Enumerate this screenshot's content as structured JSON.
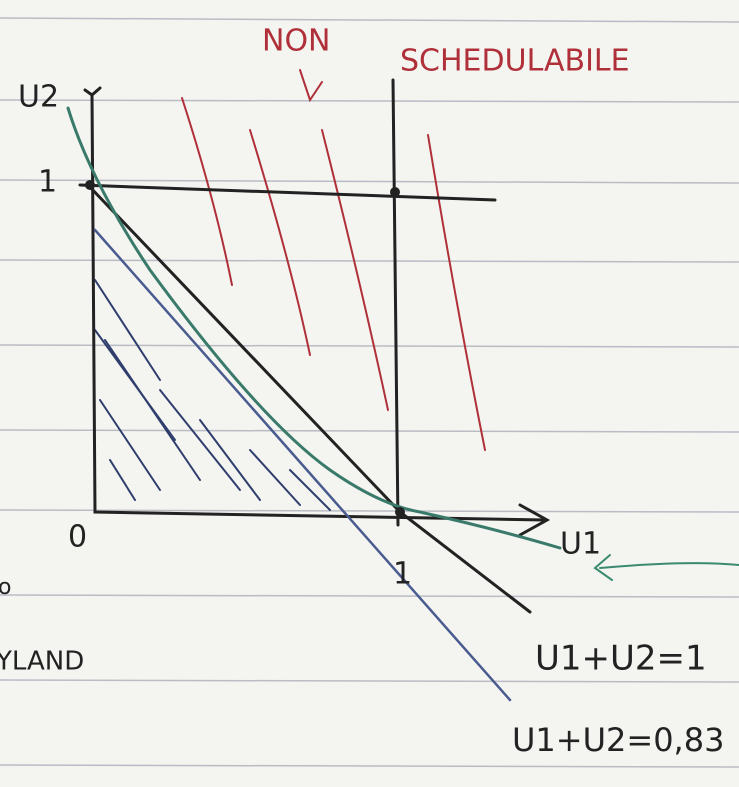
{
  "header": {
    "line1": "NON",
    "line2": "SCHEDULABILE"
  },
  "axes": {
    "y_label": "U2",
    "y_one": "1",
    "origin": "0",
    "x_one": "1",
    "x_label": "U1"
  },
  "lines": {
    "bound_one": "U1+U2=1",
    "bound_ll": "U1+U2=0,83"
  },
  "margin": {
    "fragment": "YLAND",
    "letter": "o"
  }
}
